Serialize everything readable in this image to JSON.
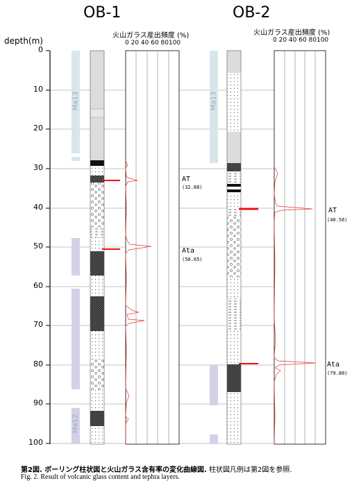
{
  "titles": {
    "ob1": "OB-1",
    "ob2": "OB-2"
  },
  "depth_axis": {
    "label": "depth(m)",
    "ticks": [
      "0",
      "10",
      "20",
      "30",
      "40",
      "50",
      "60",
      "70",
      "80",
      "90",
      "100"
    ]
  },
  "glass_panel": {
    "header": "火山ガラス産出頻度 (%)",
    "scale": "0 20 40 60 80100"
  },
  "units": {
    "ma13": "Ma13",
    "ma12": "Ma12"
  },
  "tephra": {
    "ob1_at": {
      "name": "AT",
      "depth": "(32.88)"
    },
    "ob1_ata": {
      "name": "Ata",
      "depth": "(50.65)"
    },
    "ob2_at": {
      "name": "AT",
      "depth": "(40.56)"
    },
    "ob2_ata": {
      "name": "Ata",
      "depth": "(79.80)"
    }
  },
  "caption": {
    "jp_bold": "第2図.  ボーリング柱状図と火山ガラス含有率の変化曲線図.",
    "jp_rest": "柱状図凡例は第2図を参照.",
    "en": "Fig. 2. Result of volcanic glass content and tephra layers."
  }
}
